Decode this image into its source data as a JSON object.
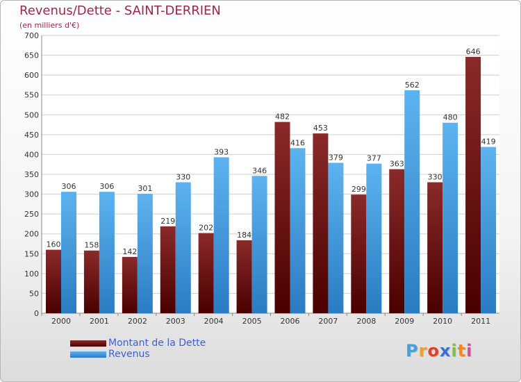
{
  "header": {
    "title": "Revenus/Dette - SAINT-DERRIEN",
    "subtitle": "(en milliers d'€)"
  },
  "legend": {
    "items": [
      {
        "label": "Montant de la Dette",
        "color": "#7a1515"
      },
      {
        "label": "Revenus",
        "color": "#4aa3e5"
      }
    ]
  },
  "logo": {
    "text": "Proxiti"
  },
  "chart_data": {
    "type": "bar",
    "title": "Revenus/Dette - SAINT-DERRIEN",
    "subtitle": "(en milliers d'€)",
    "categories": [
      "2000",
      "2001",
      "2002",
      "2003",
      "2004",
      "2005",
      "2006",
      "2007",
      "2008",
      "2009",
      "2010",
      "2011"
    ],
    "series": [
      {
        "name": "Montant de la Dette",
        "color": "#7a1515",
        "values": [
          160,
          158,
          142,
          219,
          202,
          184,
          482,
          453,
          299,
          363,
          330,
          646
        ]
      },
      {
        "name": "Revenus",
        "color": "#4aa3e5",
        "values": [
          306,
          306,
          301,
          330,
          393,
          346,
          416,
          379,
          377,
          562,
          480,
          419
        ]
      }
    ],
    "ylim": [
      0,
      700
    ],
    "yticks": [
      0,
      50,
      100,
      150,
      200,
      250,
      300,
      350,
      400,
      450,
      500,
      550,
      600,
      650,
      700
    ],
    "grid": true,
    "legend_position": "bottom-left"
  }
}
